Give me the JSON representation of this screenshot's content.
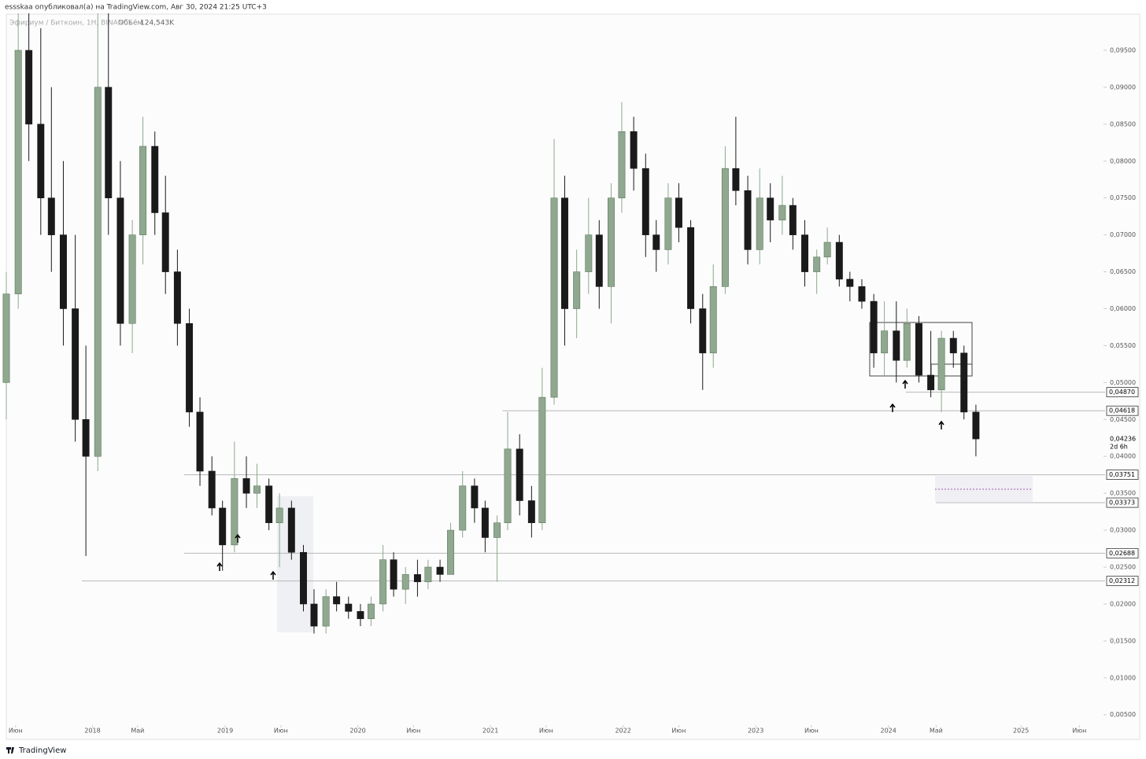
{
  "header": {
    "publisher": "essskaa опубликовал(а) на TradingView.com, Авг 30, 2024 21:25 UTC+3"
  },
  "footer": {
    "brand": "TradingView"
  },
  "chart_data": {
    "type": "candlestick",
    "symbol": "Эфириум / Биткоин, 1Н, BINANCE",
    "volume_label": "Объём",
    "volume": "124,543K",
    "up_color": "#8fa88f",
    "down_color": "#1a1a1a",
    "xlim": [
      2017.35,
      2025.61
    ],
    "ylim": [
      0.0038,
      0.0999
    ],
    "xticks": [
      {
        "value": 2017.42,
        "label": "Июн"
      },
      2018,
      {
        "value": 2018.34,
        "label": "Май"
      },
      2019,
      {
        "value": 2019.42,
        "label": "Июн"
      },
      2020,
      {
        "value": 2020.42,
        "label": "Июн"
      },
      2021,
      {
        "value": 2021.42,
        "label": "Июн"
      },
      2022,
      {
        "value": 2022.42,
        "label": "Июн"
      },
      2023,
      {
        "value": 2023.42,
        "label": "Июн"
      },
      2024,
      {
        "value": 2024.36,
        "label": "Май"
      },
      2025,
      {
        "value": 2025.44,
        "label": "Июн"
      }
    ],
    "yticks": [
      {
        "value": 0.095,
        "label": "0,09500"
      },
      {
        "value": 0.09,
        "label": "0,09000"
      },
      {
        "value": 0.085,
        "label": "0,08500"
      },
      {
        "value": 0.08,
        "label": "0,08000"
      },
      {
        "value": 0.075,
        "label": "0,07500"
      },
      {
        "value": 0.07,
        "label": "0,07000"
      },
      {
        "value": 0.065,
        "label": "0,06500"
      },
      {
        "value": 0.06,
        "label": "0,06000"
      },
      {
        "value": 0.055,
        "label": "0,05500"
      },
      {
        "value": 0.05,
        "label": "0,05000"
      },
      {
        "value": 0.045,
        "label": "0,04500"
      },
      {
        "value": 0.04,
        "label": "0,04000"
      },
      {
        "value": 0.035,
        "label": "0,03500"
      },
      {
        "value": 0.03,
        "label": "0,03000"
      },
      {
        "value": 0.025,
        "label": "0,02500"
      },
      {
        "value": 0.02,
        "label": "0,02000"
      },
      {
        "value": 0.015,
        "label": "0,01500"
      },
      {
        "value": 0.01,
        "label": "0,01000"
      },
      {
        "value": 0.005,
        "label": "0,00500"
      }
    ],
    "levels": [
      {
        "value": 0.0487,
        "label": "0,04870",
        "x_from": 2024.13
      },
      {
        "value": 0.04618,
        "label": "0,04618",
        "x_from": 2021.09
      },
      {
        "value": 0.03751,
        "label": "0,03751",
        "x_from": 2018.69
      },
      {
        "value": 0.03373,
        "label": "0,03373",
        "x_from": 2024.36
      },
      {
        "value": 0.02688,
        "label": "0,02688",
        "x_from": 2018.69
      },
      {
        "value": 0.02312,
        "label": "0,02312",
        "x_from": 2017.92
      }
    ],
    "last_price": {
      "value": 0.04236,
      "label": "0,04236"
    },
    "countdown": "2d 6h",
    "x": [
      2017.35,
      2017.44,
      2017.52,
      2017.61,
      2017.69,
      2017.78,
      2017.87,
      2017.95,
      2018.04,
      2018.12,
      2018.21,
      2018.3,
      2018.38,
      2018.47,
      2018.55,
      2018.64,
      2018.73,
      2018.81,
      2018.9,
      2018.98,
      2019.07,
      2019.16,
      2019.24,
      2019.33,
      2019.41,
      2019.5,
      2019.59,
      2019.67,
      2019.76,
      2019.84,
      2019.93,
      2020.02,
      2020.1,
      2020.19,
      2020.27,
      2020.36,
      2020.45,
      2020.53,
      2020.62,
      2020.7,
      2020.79,
      2020.88,
      2020.96,
      2021.05,
      2021.13,
      2021.22,
      2021.31,
      2021.39,
      2021.48,
      2021.56,
      2021.65,
      2021.74,
      2021.82,
      2021.91,
      2021.99,
      2022.08,
      2022.17,
      2022.25,
      2022.34,
      2022.42,
      2022.51,
      2022.6,
      2022.68,
      2022.77,
      2022.85,
      2022.94,
      2023.03,
      2023.11,
      2023.2,
      2023.28,
      2023.37,
      2023.46,
      2023.54,
      2023.63,
      2023.71,
      2023.8,
      2023.89,
      2023.97,
      2024.06,
      2024.14,
      2024.23,
      2024.32,
      2024.4,
      2024.49,
      2024.57,
      2024.66
    ],
    "candles": [
      [
        0.05,
        0.065,
        0.045,
        0.062
      ],
      [
        0.062,
        0.1,
        0.06,
        0.095
      ],
      [
        0.095,
        0.1,
        0.08,
        0.085
      ],
      [
        0.085,
        0.098,
        0.07,
        0.075
      ],
      [
        0.075,
        0.09,
        0.065,
        0.07
      ],
      [
        0.07,
        0.08,
        0.055,
        0.06
      ],
      [
        0.06,
        0.07,
        0.042,
        0.045
      ],
      [
        0.045,
        0.055,
        0.0265,
        0.04
      ],
      [
        0.04,
        0.1,
        0.038,
        0.09
      ],
      [
        0.09,
        0.1,
        0.07,
        0.075
      ],
      [
        0.075,
        0.08,
        0.055,
        0.058
      ],
      [
        0.058,
        0.072,
        0.054,
        0.07
      ],
      [
        0.07,
        0.086,
        0.066,
        0.082
      ],
      [
        0.082,
        0.084,
        0.07,
        0.073
      ],
      [
        0.073,
        0.078,
        0.062,
        0.065
      ],
      [
        0.065,
        0.068,
        0.055,
        0.058
      ],
      [
        0.058,
        0.06,
        0.044,
        0.046
      ],
      [
        0.046,
        0.048,
        0.036,
        0.038
      ],
      [
        0.038,
        0.04,
        0.032,
        0.033
      ],
      [
        0.033,
        0.034,
        0.0245,
        0.028
      ],
      [
        0.028,
        0.042,
        0.027,
        0.037
      ],
      [
        0.037,
        0.04,
        0.033,
        0.035
      ],
      [
        0.035,
        0.039,
        0.033,
        0.036
      ],
      [
        0.036,
        0.037,
        0.03,
        0.031
      ],
      [
        0.031,
        0.035,
        0.025,
        0.033
      ],
      [
        0.033,
        0.034,
        0.026,
        0.027
      ],
      [
        0.027,
        0.028,
        0.019,
        0.02
      ],
      [
        0.02,
        0.022,
        0.016,
        0.017
      ],
      [
        0.017,
        0.022,
        0.016,
        0.021
      ],
      [
        0.021,
        0.023,
        0.019,
        0.02
      ],
      [
        0.02,
        0.021,
        0.018,
        0.019
      ],
      [
        0.019,
        0.02,
        0.017,
        0.018
      ],
      [
        0.018,
        0.021,
        0.017,
        0.02
      ],
      [
        0.02,
        0.028,
        0.019,
        0.026
      ],
      [
        0.026,
        0.027,
        0.021,
        0.022
      ],
      [
        0.022,
        0.025,
        0.02,
        0.024
      ],
      [
        0.024,
        0.026,
        0.021,
        0.023
      ],
      [
        0.023,
        0.026,
        0.022,
        0.025
      ],
      [
        0.025,
        0.026,
        0.023,
        0.024
      ],
      [
        0.024,
        0.031,
        0.024,
        0.03
      ],
      [
        0.03,
        0.038,
        0.029,
        0.036
      ],
      [
        0.036,
        0.037,
        0.031,
        0.033
      ],
      [
        0.033,
        0.034,
        0.027,
        0.029
      ],
      [
        0.029,
        0.032,
        0.023,
        0.031
      ],
      [
        0.031,
        0.046,
        0.03,
        0.041
      ],
      [
        0.041,
        0.043,
        0.032,
        0.034
      ],
      [
        0.034,
        0.036,
        0.029,
        0.031
      ],
      [
        0.031,
        0.052,
        0.03,
        0.048
      ],
      [
        0.048,
        0.083,
        0.047,
        0.075
      ],
      [
        0.075,
        0.078,
        0.055,
        0.06
      ],
      [
        0.06,
        0.068,
        0.056,
        0.065
      ],
      [
        0.065,
        0.075,
        0.062,
        0.07
      ],
      [
        0.07,
        0.072,
        0.06,
        0.063
      ],
      [
        0.063,
        0.077,
        0.058,
        0.075
      ],
      [
        0.075,
        0.088,
        0.073,
        0.084
      ],
      [
        0.084,
        0.086,
        0.076,
        0.079
      ],
      [
        0.079,
        0.081,
        0.067,
        0.07
      ],
      [
        0.07,
        0.072,
        0.065,
        0.068
      ],
      [
        0.068,
        0.077,
        0.066,
        0.075
      ],
      [
        0.075,
        0.077,
        0.069,
        0.071
      ],
      [
        0.071,
        0.072,
        0.058,
        0.06
      ],
      [
        0.06,
        0.062,
        0.049,
        0.054
      ],
      [
        0.054,
        0.066,
        0.052,
        0.063
      ],
      [
        0.063,
        0.082,
        0.062,
        0.079
      ],
      [
        0.079,
        0.086,
        0.074,
        0.076
      ],
      [
        0.076,
        0.078,
        0.066,
        0.068
      ],
      [
        0.068,
        0.079,
        0.066,
        0.075
      ],
      [
        0.075,
        0.077,
        0.069,
        0.072
      ],
      [
        0.072,
        0.078,
        0.07,
        0.074
      ],
      [
        0.074,
        0.075,
        0.068,
        0.07
      ],
      [
        0.07,
        0.072,
        0.063,
        0.065
      ],
      [
        0.065,
        0.068,
        0.062,
        0.067
      ],
      [
        0.067,
        0.071,
        0.066,
        0.069
      ],
      [
        0.069,
        0.07,
        0.063,
        0.064
      ],
      [
        0.064,
        0.065,
        0.061,
        0.063
      ],
      [
        0.063,
        0.064,
        0.06,
        0.061
      ],
      [
        0.061,
        0.062,
        0.052,
        0.054
      ],
      [
        0.054,
        0.061,
        0.051,
        0.057
      ],
      [
        0.057,
        0.061,
        0.05,
        0.053
      ],
      [
        0.053,
        0.06,
        0.052,
        0.058
      ],
      [
        0.058,
        0.059,
        0.05,
        0.051
      ],
      [
        0.051,
        0.057,
        0.048,
        0.049
      ],
      [
        0.049,
        0.057,
        0.046,
        0.056
      ],
      [
        0.056,
        0.057,
        0.052,
        0.054
      ],
      [
        0.054,
        0.055,
        0.045,
        0.046
      ],
      [
        0.046,
        0.047,
        0.04,
        0.04236
      ]
    ]
  }
}
